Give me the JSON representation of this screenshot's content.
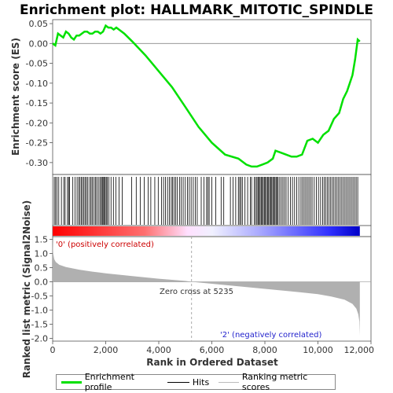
{
  "chart_data": {
    "type": "line",
    "title": "Enrichment plot: HALLMARK_MITOTIC_SPINDLE",
    "xlabel": "Rank in Ordered Dataset",
    "top_panel": {
      "ylabel": "Enrichment score (ES)",
      "ylim": [
        -0.33,
        0.06
      ],
      "yticks": [
        0.05,
        0.0,
        -0.05,
        -0.1,
        -0.15,
        -0.2,
        -0.25,
        -0.3
      ],
      "ytick_labels": [
        "0.05",
        "0.00",
        "-0.05",
        "-0.10",
        "-0.15",
        "-0.20",
        "-0.25",
        "-0.30"
      ],
      "series": [
        {
          "name": "Enrichment profile",
          "color": "#00e000",
          "x": [
            0,
            100,
            200,
            300,
            400,
            500,
            600,
            700,
            800,
            900,
            1000,
            1100,
            1200,
            1300,
            1400,
            1500,
            1600,
            1700,
            1800,
            1900,
            2000,
            2100,
            2200,
            2300,
            2400,
            2500,
            2700,
            3000,
            3500,
            4000,
            4500,
            5000,
            5500,
            6000,
            6500,
            7000,
            7300,
            7500,
            7700,
            7900,
            8100,
            8300,
            8400,
            8600,
            8800,
            9000,
            9200,
            9400,
            9600,
            9800,
            10000,
            10200,
            10400,
            10600,
            10800,
            10950,
            11100,
            11200,
            11300,
            11400,
            11500,
            11580
          ],
          "y": [
            0.0,
            -0.005,
            0.025,
            0.02,
            0.015,
            0.03,
            0.025,
            0.015,
            0.01,
            0.02,
            0.02,
            0.025,
            0.03,
            0.03,
            0.025,
            0.025,
            0.03,
            0.03,
            0.025,
            0.03,
            0.045,
            0.04,
            0.04,
            0.035,
            0.04,
            0.035,
            0.025,
            0.005,
            -0.03,
            -0.07,
            -0.11,
            -0.16,
            -0.21,
            -0.25,
            -0.28,
            -0.29,
            -0.305,
            -0.31,
            -0.31,
            -0.305,
            -0.3,
            -0.29,
            -0.27,
            -0.275,
            -0.28,
            -0.285,
            -0.285,
            -0.28,
            -0.245,
            -0.24,
            -0.25,
            -0.23,
            -0.22,
            -0.19,
            -0.175,
            -0.14,
            -0.12,
            -0.1,
            -0.08,
            -0.04,
            0.01,
            0.005
          ]
        }
      ]
    },
    "hits_panel": {
      "name": "Hits",
      "positions": [
        60,
        110,
        160,
        230,
        330,
        420,
        470,
        560,
        600,
        640,
        760,
        840,
        920,
        980,
        1030,
        1080,
        1130,
        1180,
        1230,
        1280,
        1330,
        1400,
        1450,
        1500,
        1560,
        1610,
        1660,
        1720,
        1780,
        1830,
        1870,
        1900,
        1940,
        1980,
        2020,
        2060,
        2120,
        2200,
        2290,
        2380,
        2500,
        2620,
        2980,
        3150,
        3300,
        3450,
        3600,
        3700,
        3850,
        3980,
        4100,
        4180,
        4250,
        4330,
        4400,
        4470,
        4520,
        4580,
        4640,
        4700,
        4780,
        4850,
        4920,
        5000,
        5080,
        5150,
        5220,
        5300,
        5380,
        5450,
        5600,
        5700,
        5800,
        5850,
        5900,
        6000,
        6150,
        6350,
        6450,
        6700,
        6800,
        6900,
        7000,
        7050,
        7100,
        7150,
        7250,
        7350,
        7450,
        7500,
        7600,
        7650,
        7700,
        7740,
        7780,
        7820,
        7860,
        7900,
        7940,
        7980,
        8020,
        8060,
        8100,
        8140,
        8180,
        8220,
        8260,
        8300,
        8340,
        8380,
        8420,
        8460,
        8500,
        8560,
        8620,
        8680,
        8740,
        8800,
        8880,
        8960,
        9040,
        9120,
        9200,
        9280,
        9360,
        9420,
        9480,
        9540,
        9600,
        9660,
        9720,
        9780,
        9860,
        9940,
        10020,
        10100,
        10180,
        10240,
        10300,
        10360,
        10420,
        10480,
        10540,
        10600,
        10660,
        10720,
        10780,
        10840,
        10900,
        10960,
        11020,
        11080,
        11140,
        11200,
        11260,
        11320,
        11380,
        11440,
        11500
      ]
    },
    "bottom_panel": {
      "name": "Ranking metric scores",
      "ylabel": "Ranked list metric (Signal2Noise)",
      "ylim": [
        -2.1,
        1.6
      ],
      "yticks": [
        1.5,
        1.0,
        0.5,
        0.0,
        -0.5,
        -1.0,
        -1.5,
        -2.0
      ],
      "ytick_labels": [
        "1.5",
        "1.0",
        "0.5",
        "0.0",
        "-0.5",
        "-1.0",
        "-1.5",
        "-2.0"
      ],
      "x": [
        0,
        20,
        60,
        120,
        250,
        500,
        1000,
        1500,
        2000,
        3000,
        4000,
        5000,
        5235,
        6000,
        7000,
        8000,
        9000,
        10000,
        10500,
        11000,
        11300,
        11450,
        11520,
        11560,
        11580
      ],
      "y": [
        1.55,
        1.0,
        0.8,
        0.7,
        0.6,
        0.52,
        0.43,
        0.36,
        0.3,
        0.2,
        0.11,
        0.03,
        0.0,
        -0.07,
        -0.16,
        -0.25,
        -0.34,
        -0.44,
        -0.52,
        -0.63,
        -0.78,
        -0.95,
        -1.15,
        -1.4,
        -1.9
      ]
    },
    "xlim": [
      0,
      12000
    ],
    "xticks": [
      0,
      2000,
      4000,
      6000,
      8000,
      10000,
      12000
    ],
    "xtick_labels": [
      "0",
      "2,000",
      "4,000",
      "6,000",
      "8,000",
      "10,000",
      "12,000"
    ],
    "n_genes": 11580,
    "zero_cross": 5235,
    "annotations": {
      "zero_cross": "Zero cross at 5235",
      "positive": "'0' (positively correlated)",
      "negative": "'2' (negatively correlated)"
    },
    "colors": {
      "profile": "#00e000",
      "positive": "#ff0000",
      "negative": "#0000ff",
      "metric_fill": "#b0b0b0"
    },
    "legend": {
      "placement": "bottom",
      "entries": [
        "Enrichment profile",
        "Hits",
        "Ranking metric scores"
      ]
    }
  }
}
